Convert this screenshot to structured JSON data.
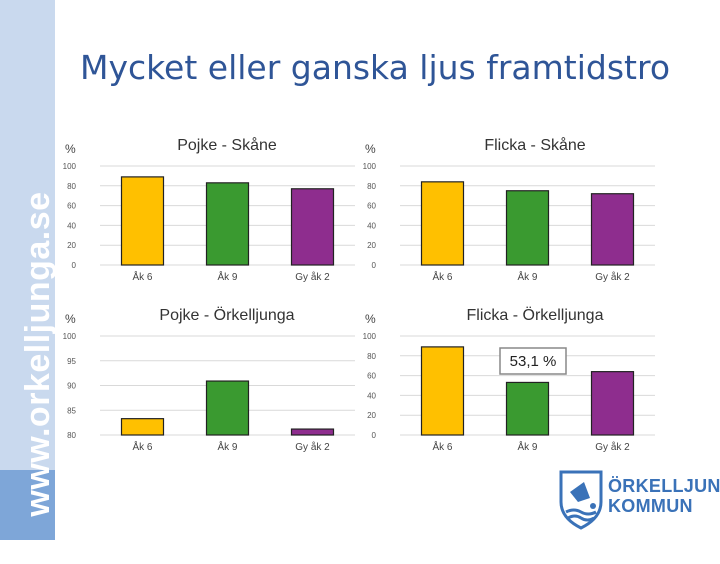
{
  "sidebar": {
    "text": "www.orkelljunga.se"
  },
  "slide": {
    "title": "Mycket eller ganska ljus framtidstro"
  },
  "colors": {
    "bar1": "#ffc000",
    "bar2": "#3a9a30",
    "bar3": "#8e2d8e",
    "title": "#2f5597"
  },
  "logo": {
    "line1": "ÖRKELLJUNGA",
    "line2": "KOMMUN"
  },
  "chart_data": [
    {
      "type": "bar",
      "title": "Pojke - Skåne",
      "ylabel": "%",
      "categories": [
        "Åk 6",
        "Åk 9",
        "Gy åk 2"
      ],
      "values": [
        89,
        83,
        77
      ],
      "ylim": [
        0,
        100
      ],
      "yticks": [
        "100",
        "80",
        "60",
        "40",
        "20",
        "0"
      ]
    },
    {
      "type": "bar",
      "title": "Flicka - Skåne",
      "ylabel": "%",
      "categories": [
        "Åk 6",
        "Åk 9",
        "Gy åk 2"
      ],
      "values": [
        84,
        75,
        72
      ],
      "ylim": [
        0,
        100
      ],
      "yticks": [
        "100",
        "80",
        "60",
        "40",
        "20",
        "0"
      ]
    },
    {
      "type": "bar",
      "title": "Pojke - Örkelljunga",
      "ylabel": "%",
      "categories": [
        "Åk 6",
        "Åk 9",
        "Gy åk 2"
      ],
      "values": [
        83.3,
        90.9,
        81.2
      ],
      "ylim": [
        80,
        100
      ],
      "yticks": [
        "100",
        "95",
        "90",
        "85",
        "80"
      ]
    },
    {
      "type": "bar",
      "title": "Flicka - Örkelljunga",
      "ylabel": "%",
      "categories": [
        "Åk 6",
        "Åk 9",
        "Gy åk 2"
      ],
      "values": [
        89,
        53.1,
        64
      ],
      "ylim": [
        0,
        100
      ],
      "yticks": [
        "100",
        "80",
        "60",
        "40",
        "20",
        "0"
      ],
      "annotation": "53,1 %"
    }
  ]
}
